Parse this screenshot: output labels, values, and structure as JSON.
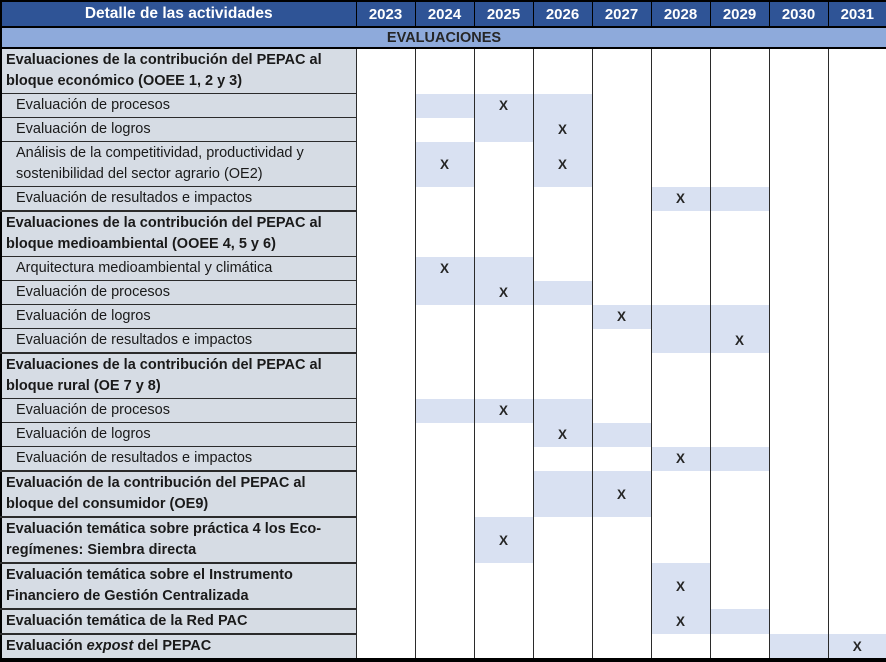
{
  "header": {
    "title": "Detalle de las actividades",
    "years": [
      "2023",
      "2024",
      "2025",
      "2026",
      "2027",
      "2028",
      "2029",
      "2030",
      "2031"
    ]
  },
  "banner": {
    "label": "EVALUACIONES"
  },
  "mark": "X",
  "cell_states_legend": {
    "shaded": "planned period",
    "marked": "planned period with X mark"
  },
  "colors": {
    "header_bg": "#2F5496",
    "header_text": "#FFFFFF",
    "banner_bg": "#8EAADB",
    "banner_text": "#262626",
    "label_bg": "#D6DCE4",
    "label_text": "#1A1A1A",
    "highlight": "#D9E1F2",
    "grid": "#2B2B2B",
    "mark_color": "#262626"
  },
  "rows": [
    {
      "kind": "category",
      "label": "Evaluaciones de la contribución del PEPAC al bloque económico (OOEE 1, 2 y 3)",
      "cells": {}
    },
    {
      "kind": "item",
      "label": "Evaluación de procesos",
      "cells": {
        "2024": "shaded",
        "2025": "marked",
        "2026": "shaded"
      }
    },
    {
      "kind": "item",
      "label": "Evaluación de logros",
      "cells": {
        "2025": "shaded",
        "2026": "marked"
      }
    },
    {
      "kind": "item",
      "label": "Análisis de la competitividad, productividad y sostenibilidad del sector agrario (OE2)",
      "cells": {
        "2024": "marked",
        "2026": "marked"
      }
    },
    {
      "kind": "item",
      "label": "Evaluación de resultados e impactos",
      "cells": {
        "2028": "marked",
        "2029": "shaded"
      }
    },
    {
      "kind": "category",
      "label": "Evaluaciones de la contribución del PEPAC al bloque medioambiental (OOEE 4, 5 y 6)",
      "cells": {}
    },
    {
      "kind": "item",
      "label": "Arquitectura medioambiental y climática",
      "cells": {
        "2024": "marked",
        "2025": "shaded"
      }
    },
    {
      "kind": "item",
      "label": "Evaluación de procesos",
      "cells": {
        "2024": "shaded",
        "2025": "marked",
        "2026": "shaded"
      }
    },
    {
      "kind": "item",
      "label": "Evaluación de logros",
      "cells": {
        "2027": "marked",
        "2028": "shaded",
        "2029": "shaded"
      }
    },
    {
      "kind": "item",
      "label": "Evaluación de resultados e impactos",
      "cells": {
        "2028": "shaded",
        "2029": "marked"
      }
    },
    {
      "kind": "category",
      "label": "Evaluaciones de la contribución del PEPAC al bloque rural (OE 7 y 8)",
      "cells": {}
    },
    {
      "kind": "item",
      "label": "Evaluación de procesos",
      "cells": {
        "2024": "shaded",
        "2025": "marked",
        "2026": "shaded"
      }
    },
    {
      "kind": "item",
      "label": "Evaluación de logros",
      "cells": {
        "2026": "marked",
        "2027": "shaded"
      }
    },
    {
      "kind": "item",
      "label": "Evaluación de resultados e impactos",
      "cells": {
        "2028": "marked",
        "2029": "shaded"
      }
    },
    {
      "kind": "category",
      "label": "Evaluación de la contribución del PEPAC al bloque del consumidor (OE9)",
      "cells": {
        "2026": "shaded",
        "2027": "marked"
      }
    },
    {
      "kind": "category",
      "label": "Evaluación temática sobre práctica 4 los Eco-regímenes: Siembra directa",
      "cells": {
        "2025": "marked"
      }
    },
    {
      "kind": "category",
      "label": "Evaluación temática sobre el Instrumento Financiero de Gestión Centralizada",
      "cells": {
        "2028": "marked"
      }
    },
    {
      "kind": "category",
      "label": "Evaluación temática de la Red PAC",
      "cells": {
        "2028": "marked",
        "2029": "shaded"
      }
    },
    {
      "kind": "category",
      "label": "Evaluación expost del PEPAC",
      "label_parts": [
        {
          "text": "Evaluación ",
          "italic": false
        },
        {
          "text": "expost",
          "italic": true
        },
        {
          "text": " del PEPAC",
          "italic": false
        }
      ],
      "cells": {
        "2030": "shaded",
        "2031": "marked"
      }
    }
  ]
}
